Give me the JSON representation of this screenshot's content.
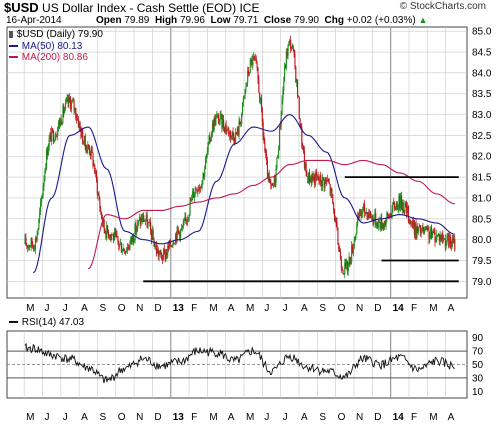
{
  "header": {
    "symbol": "$USD",
    "name": "US Dollar Index - Cash Settle (EOD)",
    "exchange": "ICE",
    "watermark": "© StockCharts.com",
    "date": "16-Apr-2014",
    "open_label": "Open",
    "open": "79.89",
    "high_label": "High",
    "high": "79.96",
    "low_label": "Low",
    "low": "79.71",
    "close_label": "Close",
    "close": "79.90",
    "chg_label": "Chg",
    "chg": "+0.02 (+0.03%)",
    "chg_arrow": "▲"
  },
  "legend": {
    "symbol_label": "$USD (Daily) 79.90",
    "ma50_label": "MA(50) 80.13",
    "ma200_label": "MA(200) 80.86",
    "rsi_label": "RSI(14) 47.03"
  },
  "colors": {
    "up": "#1f8c1f",
    "down": "#c0161b",
    "ma50": "#1a1a8c",
    "ma200": "#c21a4a",
    "rsi_line": "#111111",
    "rsi_fill": "#b8b8b8",
    "grid": "#c9c9c9",
    "support": "#000000"
  },
  "chart_data": [
    {
      "type": "line",
      "panel": "price",
      "subtype": "ohlc-candlestick",
      "title": "$USD US Dollar Index - Cash Settle (EOD) ICE",
      "ylim": [
        78.6,
        85.1
      ],
      "y_ticks": [
        "85.0",
        "84.5",
        "84.0",
        "83.5",
        "83.0",
        "82.5",
        "82.0",
        "81.5",
        "81.0",
        "80.5",
        "80.0",
        "79.5",
        "79.0"
      ],
      "x_ticks": [
        "M",
        "J",
        "J",
        "A",
        "S",
        "O",
        "N",
        "D",
        "13",
        "F",
        "M",
        "A",
        "M",
        "J",
        "J",
        "A",
        "S",
        "O",
        "N",
        "D",
        "14",
        "F",
        "M",
        "A"
      ],
      "x_year_ticks": [
        "13",
        "14"
      ],
      "gridlines": true,
      "legend_position": "top-left",
      "series": [
        {
          "name": "$USD (Daily) 79.90",
          "x": [
            "2012-05",
            "2012-06",
            "2012-07",
            "2012-08",
            "2012-09",
            "2012-10",
            "2012-11",
            "2012-12",
            "2013-01",
            "2013-02",
            "2013-03",
            "2013-04",
            "2013-05",
            "2013-06",
            "2013-07",
            "2013-08",
            "2013-09",
            "2013-10",
            "2013-11",
            "2013-12",
            "2014-01",
            "2014-02",
            "2014-03",
            "2014-04-16"
          ],
          "values": [
            79.9,
            82.5,
            83.3,
            82.2,
            80.2,
            79.8,
            80.5,
            79.6,
            80.2,
            81.3,
            82.9,
            82.5,
            84.3,
            81.2,
            84.7,
            81.5,
            81.4,
            79.3,
            80.7,
            80.4,
            80.9,
            80.2,
            80.1,
            79.9
          ]
        },
        {
          "name": "MA(50) 80.13",
          "x": [
            "2012-05",
            "2012-06",
            "2012-07",
            "2012-08",
            "2012-09",
            "2012-10",
            "2012-11",
            "2012-12",
            "2013-01",
            "2013-02",
            "2013-03",
            "2013-04",
            "2013-05",
            "2013-06",
            "2013-07",
            "2013-08",
            "2013-09",
            "2013-10",
            "2013-11",
            "2013-12",
            "2014-01",
            "2014-02",
            "2014-03",
            "2014-04-16"
          ],
          "values": [
            79.2,
            81.0,
            82.5,
            82.7,
            81.7,
            80.2,
            80.0,
            79.9,
            80.0,
            80.2,
            81.4,
            82.3,
            82.7,
            82.6,
            83.0,
            82.5,
            82.1,
            81.0,
            80.4,
            80.5,
            80.6,
            80.5,
            80.4,
            80.13
          ]
        },
        {
          "name": "MA(200) 80.86",
          "x": [
            "2012-08",
            "2012-09",
            "2012-10",
            "2012-11",
            "2012-12",
            "2013-01",
            "2013-02",
            "2013-03",
            "2013-04",
            "2013-05",
            "2013-06",
            "2013-07",
            "2013-08",
            "2013-09",
            "2013-10",
            "2013-11",
            "2013-12",
            "2014-01",
            "2014-02",
            "2014-03",
            "2014-04-16"
          ],
          "values": [
            79.3,
            80.6,
            80.5,
            80.7,
            80.7,
            80.8,
            80.9,
            81.0,
            81.1,
            81.3,
            81.5,
            81.8,
            81.9,
            81.9,
            81.8,
            81.9,
            81.8,
            81.6,
            81.4,
            81.1,
            80.86
          ]
        }
      ],
      "annotations": [
        {
          "type": "horizontal-line",
          "value": 81.5,
          "from": "2013-10",
          "to": "2014-04-16"
        },
        {
          "type": "horizontal-line",
          "value": 79.5,
          "from": "2013-12",
          "to": "2014-04-16"
        },
        {
          "type": "horizontal-line",
          "value": 79.0,
          "from": "2012-11",
          "to": "2014-04-16"
        }
      ]
    },
    {
      "type": "line",
      "panel": "rsi",
      "title": "RSI(14) 47.03",
      "ylim": [
        0,
        100
      ],
      "y_ticks": [
        "90",
        "70",
        "50",
        "30",
        "10"
      ],
      "reference_lines": [
        70,
        50,
        30
      ],
      "x_ticks": [
        "M",
        "J",
        "J",
        "A",
        "S",
        "O",
        "N",
        "D",
        "13",
        "F",
        "M",
        "A",
        "M",
        "J",
        "J",
        "A",
        "S",
        "O",
        "N",
        "D",
        "14",
        "F",
        "M",
        "A"
      ],
      "series": [
        {
          "name": "RSI(14) 47.03",
          "x": [
            "2012-05",
            "2012-06",
            "2012-07",
            "2012-08",
            "2012-09",
            "2012-10",
            "2012-11",
            "2012-12",
            "2013-01",
            "2013-02",
            "2013-03",
            "2013-04",
            "2013-05",
            "2013-06",
            "2013-07",
            "2013-08",
            "2013-09",
            "2013-10",
            "2013-11",
            "2013-12",
            "2014-01",
            "2014-02",
            "2014-03",
            "2014-04-16"
          ],
          "values": [
            74,
            64,
            58,
            45,
            26,
            44,
            58,
            48,
            54,
            70,
            68,
            55,
            70,
            40,
            62,
            46,
            40,
            32,
            58,
            50,
            60,
            42,
            55,
            47.03
          ]
        }
      ]
    }
  ]
}
